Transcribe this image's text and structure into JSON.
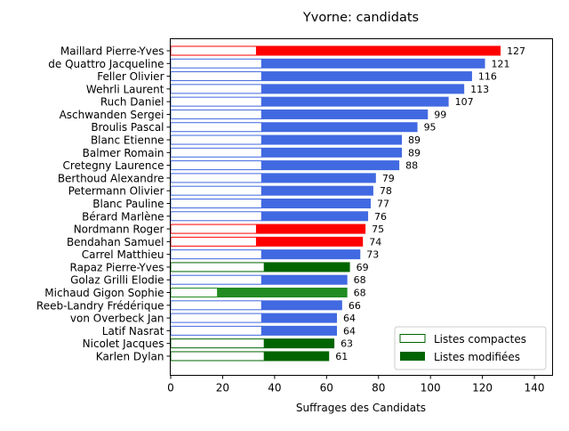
{
  "chart_data": {
    "type": "bar",
    "orientation": "horizontal",
    "title": "Yvorne: candidats",
    "xlabel": "Suffrages des Candidats",
    "ylabel": "",
    "xlim": [
      0,
      147
    ],
    "xticks": [
      0,
      20,
      40,
      60,
      80,
      100,
      120,
      140
    ],
    "grid": false,
    "legend_position": "lower-right",
    "legend": [
      {
        "label": "Listes compactes",
        "style": "outline",
        "color": "#006400"
      },
      {
        "label": "Listes modifiées",
        "style": "filled",
        "color": "#006400"
      }
    ],
    "colors": {
      "blue_list": "#4169e1",
      "red_list": "#ff0000",
      "green_list": "#006400",
      "green_list_alt": "#228b22"
    },
    "candidates": [
      {
        "name": "Maillard Pierre-Yves",
        "total": 127,
        "compact": 33,
        "color": "#ff0000"
      },
      {
        "name": "de Quattro Jacqueline",
        "total": 121,
        "compact": 35,
        "color": "#4169e1"
      },
      {
        "name": "Feller Olivier",
        "total": 116,
        "compact": 35,
        "color": "#4169e1"
      },
      {
        "name": "Wehrli Laurent",
        "total": 113,
        "compact": 35,
        "color": "#4169e1"
      },
      {
        "name": "Ruch Daniel",
        "total": 107,
        "compact": 35,
        "color": "#4169e1"
      },
      {
        "name": "Aschwanden Sergei",
        "total": 99,
        "compact": 35,
        "color": "#4169e1"
      },
      {
        "name": "Broulis Pascal",
        "total": 95,
        "compact": 35,
        "color": "#4169e1"
      },
      {
        "name": "Blanc Etienne",
        "total": 89,
        "compact": 35,
        "color": "#4169e1"
      },
      {
        "name": "Balmer Romain",
        "total": 89,
        "compact": 35,
        "color": "#4169e1"
      },
      {
        "name": "Cretegny Laurence",
        "total": 88,
        "compact": 35,
        "color": "#4169e1"
      },
      {
        "name": "Berthoud Alexandre",
        "total": 79,
        "compact": 35,
        "color": "#4169e1"
      },
      {
        "name": "Petermann Olivier",
        "total": 78,
        "compact": 35,
        "color": "#4169e1"
      },
      {
        "name": "Blanc Pauline",
        "total": 77,
        "compact": 35,
        "color": "#4169e1"
      },
      {
        "name": "Bérard Marlène",
        "total": 76,
        "compact": 35,
        "color": "#4169e1"
      },
      {
        "name": "Nordmann Roger",
        "total": 75,
        "compact": 33,
        "color": "#ff0000"
      },
      {
        "name": "Bendahan Samuel",
        "total": 74,
        "compact": 33,
        "color": "#ff0000"
      },
      {
        "name": "Carrel Matthieu",
        "total": 73,
        "compact": 35,
        "color": "#4169e1"
      },
      {
        "name": "Rapaz Pierre-Yves",
        "total": 69,
        "compact": 36,
        "color": "#006400"
      },
      {
        "name": "Golaz Grilli Elodie",
        "total": 68,
        "compact": 35,
        "color": "#4169e1"
      },
      {
        "name": "Michaud Gigon Sophie",
        "total": 68,
        "compact": 18,
        "color": "#228b22"
      },
      {
        "name": "Reeb-Landry Frédérique",
        "total": 66,
        "compact": 35,
        "color": "#4169e1"
      },
      {
        "name": "von Overbeck Jan",
        "total": 64,
        "compact": 35,
        "color": "#4169e1"
      },
      {
        "name": "Latif Nasrat",
        "total": 64,
        "compact": 35,
        "color": "#4169e1"
      },
      {
        "name": "Nicolet Jacques",
        "total": 63,
        "compact": 36,
        "color": "#006400"
      },
      {
        "name": "Karlen Dylan",
        "total": 61,
        "compact": 36,
        "color": "#006400"
      }
    ]
  }
}
